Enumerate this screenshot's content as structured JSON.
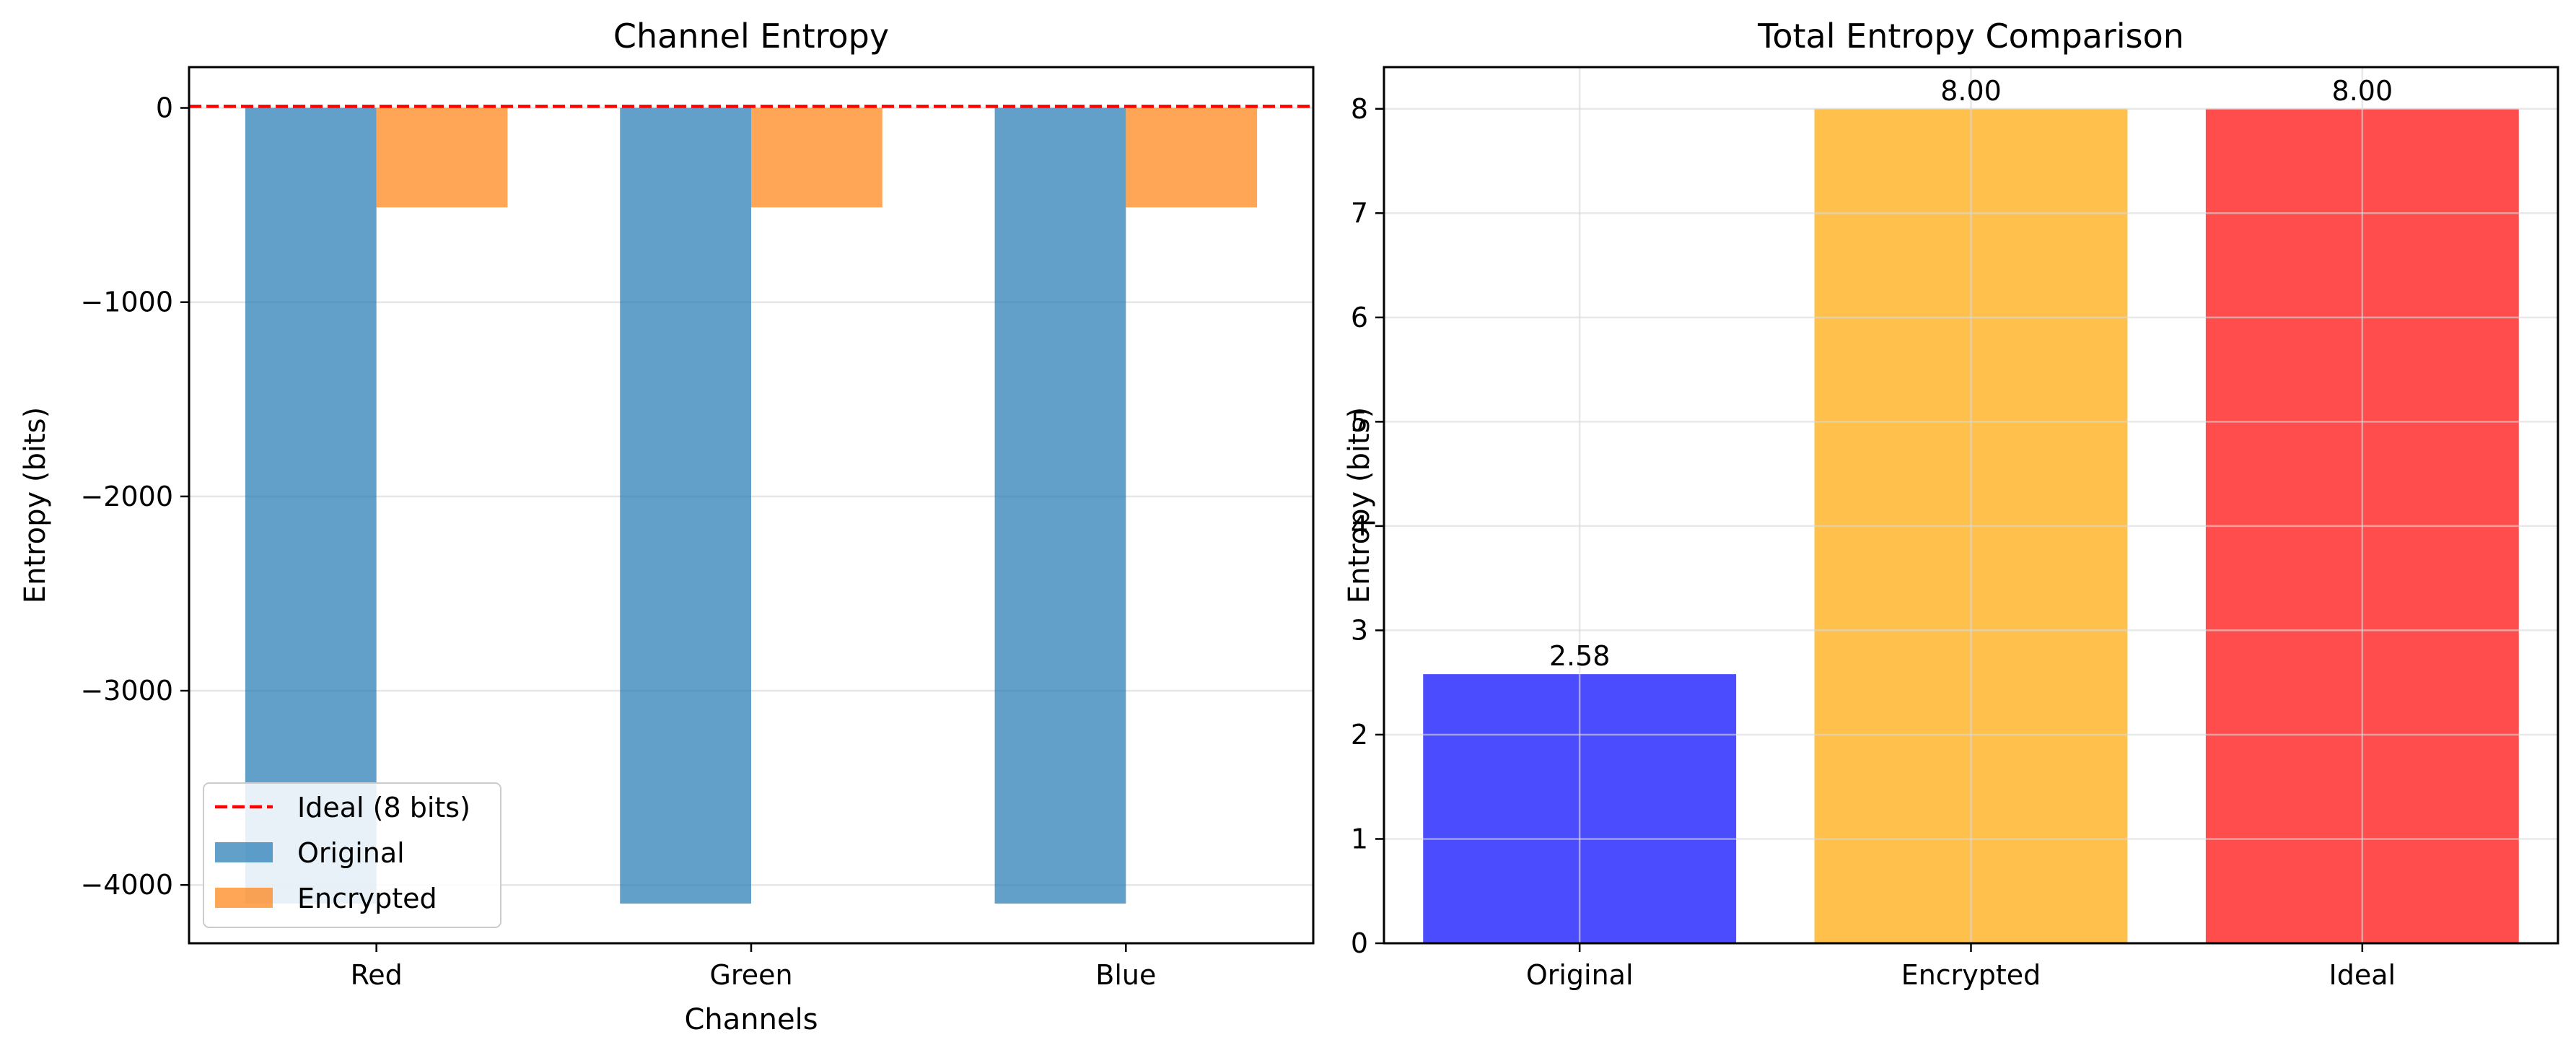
{
  "chart_data": [
    {
      "type": "bar",
      "title": "Channel Entropy",
      "xlabel": "Channels",
      "ylabel": "Entropy (bits)",
      "categories": [
        "Red",
        "Green",
        "Blue"
      ],
      "series": [
        {
          "name": "Original",
          "values": [
            -4096,
            -4096,
            -4096
          ],
          "color": "#1f77b4"
        },
        {
          "name": "Encrypted",
          "values": [
            -512,
            -512,
            -512
          ],
          "color": "#ff7f0e"
        }
      ],
      "reference_line": {
        "name": "Ideal (8 bits)",
        "value": 8,
        "color": "#ff0000",
        "style": "dashed"
      },
      "ylim": [
        -4300,
        210
      ],
      "yticks": [
        0,
        -1000,
        -2000,
        -3000,
        -4000
      ],
      "ytick_labels": [
        "0",
        "−1000",
        "−2000",
        "−3000",
        "−4000"
      ],
      "grid": true,
      "legend": "lower-left"
    },
    {
      "type": "bar",
      "title": "Total Entropy Comparison",
      "xlabel": "",
      "ylabel": "Entropy (bits)",
      "categories": [
        "Original",
        "Encrypted",
        "Ideal"
      ],
      "values": [
        2.58,
        8.0,
        8.0
      ],
      "data_labels": [
        "2.58",
        "8.00",
        "8.00"
      ],
      "colors": [
        "#0000ff",
        "#ffa500",
        "#ff0000"
      ],
      "ylim": [
        0,
        8.4
      ],
      "yticks": [
        0,
        1,
        2,
        3,
        4,
        5,
        6,
        7,
        8
      ],
      "ytick_labels": [
        "0",
        "1",
        "2",
        "3",
        "4",
        "5",
        "6",
        "7",
        "8"
      ],
      "grid": true
    }
  ]
}
